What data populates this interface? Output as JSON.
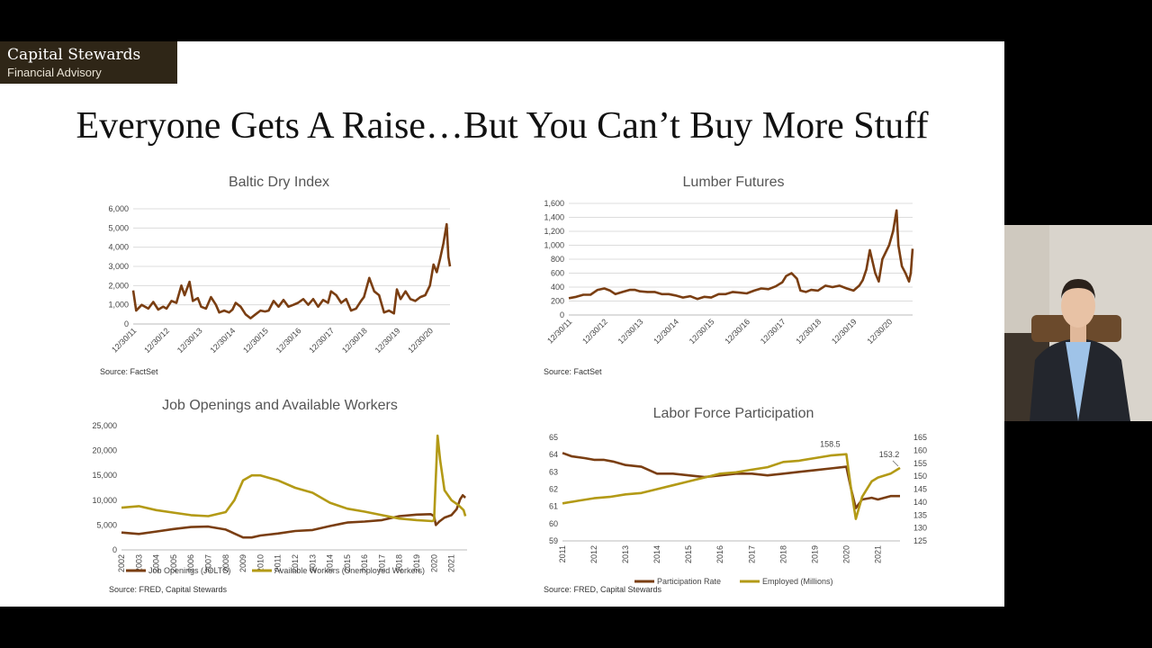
{
  "brand": {
    "name": "Capital Stewards",
    "subtitle": "Financial Advisory"
  },
  "slide_title": "Everyone Gets A Raise…But You Can’t Buy More Stuff",
  "colors": {
    "brown": "#7a3e12",
    "gold": "#b39a16",
    "brand_bg": "#2f2617"
  },
  "webcam": {
    "description_icon": "presenter-video-icon"
  },
  "chart_data": [
    {
      "id": "baltic",
      "type": "line",
      "title": "Baltic Dry Index",
      "source": "Source: FactSet",
      "ylim": [
        0,
        6000
      ],
      "yticks": [
        0,
        1000,
        2000,
        3000,
        4000,
        5000,
        6000
      ],
      "ytick_labels": [
        "0",
        "1,000",
        "2,000",
        "3,000",
        "4,000",
        "5,000",
        "6,000"
      ],
      "xlim": [
        2011.99,
        2021.6
      ],
      "xticks": [
        2011.99,
        2012.99,
        2013.99,
        2014.99,
        2015.99,
        2016.99,
        2017.99,
        2018.99,
        2019.99,
        2020.99
      ],
      "xtick_labels": [
        "12/30/11",
        "12/30/12",
        "12/30/13",
        "12/30/14",
        "12/30/15",
        "12/30/16",
        "12/30/17",
        "12/30/18",
        "12/30/19",
        "12/30/20"
      ],
      "grid": true,
      "series": [
        {
          "color": "#7a3e12",
          "x": [
            2011.99,
            2012.08,
            2012.25,
            2012.45,
            2012.6,
            2012.75,
            2012.9,
            2013.0,
            2013.15,
            2013.3,
            2013.45,
            2013.55,
            2013.7,
            2013.8,
            2013.95,
            2014.05,
            2014.2,
            2014.35,
            2014.5,
            2014.6,
            2014.75,
            2014.9,
            2015.0,
            2015.1,
            2015.25,
            2015.4,
            2015.55,
            2015.7,
            2015.85,
            2015.99,
            2016.1,
            2016.25,
            2016.4,
            2016.55,
            2016.7,
            2016.85,
            2016.99,
            2017.15,
            2017.3,
            2017.45,
            2017.6,
            2017.75,
            2017.9,
            2017.99,
            2018.15,
            2018.3,
            2018.45,
            2018.6,
            2018.75,
            2018.9,
            2018.99,
            2019.15,
            2019.3,
            2019.45,
            2019.6,
            2019.75,
            2019.9,
            2019.99,
            2020.1,
            2020.25,
            2020.4,
            2020.55,
            2020.7,
            2020.85,
            2020.99,
            2021.1,
            2021.2,
            2021.3,
            2021.4,
            2021.5,
            2021.55,
            2021.6
          ],
          "y": [
            1750,
            700,
            1000,
            800,
            1150,
            750,
            900,
            800,
            1200,
            1100,
            2000,
            1500,
            2200,
            1200,
            1350,
            900,
            800,
            1400,
            1000,
            600,
            700,
            600,
            750,
            1100,
            900,
            500,
            300,
            500,
            700,
            650,
            700,
            1200,
            900,
            1250,
            900,
            1000,
            1100,
            1300,
            1000,
            1300,
            900,
            1250,
            1100,
            1700,
            1500,
            1100,
            1300,
            700,
            800,
            1200,
            1400,
            2400,
            1700,
            1500,
            600,
            700,
            550,
            1800,
            1300,
            1700,
            1300,
            1200,
            1400,
            1500,
            2000,
            3100,
            2700,
            3400,
            4200,
            5200,
            3500,
            3000
          ]
        }
      ]
    },
    {
      "id": "lumber",
      "type": "line",
      "title": "Lumber Futures",
      "source": "Source: FactSet",
      "ylim": [
        0,
        1600
      ],
      "yticks": [
        0,
        200,
        400,
        600,
        800,
        1000,
        1200,
        1400,
        1600
      ],
      "ytick_labels": [
        "0",
        "200",
        "400",
        "600",
        "800",
        "1,000",
        "1,200",
        "1,400",
        "1,600"
      ],
      "xlim": [
        2011.99,
        2021.65
      ],
      "xticks": [
        2011.99,
        2012.99,
        2013.99,
        2014.99,
        2015.99,
        2016.99,
        2017.99,
        2018.99,
        2019.99,
        2020.99
      ],
      "xtick_labels": [
        "12/30/11",
        "12/30/12",
        "12/30/13",
        "12/30/14",
        "12/30/15",
        "12/30/16",
        "12/30/17",
        "12/30/18",
        "12/30/19",
        "12/30/20"
      ],
      "grid": true,
      "series": [
        {
          "color": "#7a3e12",
          "x": [
            2011.99,
            2012.2,
            2012.4,
            2012.6,
            2012.8,
            2012.99,
            2013.15,
            2013.3,
            2013.5,
            2013.7,
            2013.85,
            2013.99,
            2014.2,
            2014.4,
            2014.6,
            2014.8,
            2014.99,
            2015.2,
            2015.4,
            2015.6,
            2015.8,
            2015.99,
            2016.2,
            2016.4,
            2016.6,
            2016.8,
            2016.99,
            2017.2,
            2017.4,
            2017.6,
            2017.8,
            2017.99,
            2018.1,
            2018.25,
            2018.4,
            2018.5,
            2018.65,
            2018.8,
            2018.99,
            2019.2,
            2019.4,
            2019.6,
            2019.8,
            2019.99,
            2020.15,
            2020.25,
            2020.35,
            2020.45,
            2020.6,
            2020.7,
            2020.8,
            2020.99,
            2021.1,
            2021.2,
            2021.25,
            2021.35,
            2021.45,
            2021.55,
            2021.6,
            2021.65
          ],
          "y": [
            240,
            260,
            290,
            290,
            360,
            380,
            350,
            300,
            330,
            360,
            360,
            340,
            330,
            330,
            300,
            300,
            280,
            250,
            270,
            230,
            260,
            250,
            300,
            300,
            330,
            320,
            310,
            350,
            380,
            370,
            410,
            470,
            560,
            600,
            520,
            350,
            330,
            360,
            350,
            420,
            400,
            420,
            380,
            350,
            420,
            500,
            650,
            930,
            600,
            480,
            800,
            1000,
            1200,
            1500,
            1000,
            700,
            600,
            480,
            600,
            950
          ]
        }
      ]
    },
    {
      "id": "jobs",
      "type": "line",
      "title": "Job Openings and Available Workers",
      "source": "Source: FRED, Capital Stewards",
      "ylim": [
        0,
        25000
      ],
      "yticks": [
        0,
        5000,
        10000,
        15000,
        20000,
        25000
      ],
      "ytick_labels": [
        "0",
        "5,000",
        "10,000",
        "15,000",
        "20,000",
        "25,000"
      ],
      "xlim": [
        2002,
        2021.9
      ],
      "xticks": [
        2002,
        2003,
        2004,
        2005,
        2006,
        2007,
        2008,
        2009,
        2010,
        2011,
        2012,
        2013,
        2014,
        2015,
        2016,
        2017,
        2018,
        2019,
        2020,
        2021
      ],
      "xtick_labels": [
        "2002",
        "2003",
        "2004",
        "2005",
        "2006",
        "2007",
        "2008",
        "2009",
        "2010",
        "2011",
        "2012",
        "2013",
        "2014",
        "2015",
        "2016",
        "2017",
        "2018",
        "2019",
        "2020",
        "2021"
      ],
      "grid": false,
      "legend": "bottom",
      "series": [
        {
          "name": "Job Openings (JOLTS)",
          "color": "#7a3e12",
          "x": [
            2002,
            2003,
            2004,
            2005,
            2006,
            2007,
            2008,
            2008.5,
            2009,
            2009.5,
            2010,
            2011,
            2012,
            2013,
            2014,
            2015,
            2016,
            2017,
            2018,
            2019,
            2019.8,
            2020.0,
            2020.1,
            2020.3,
            2020.6,
            2021,
            2021.3,
            2021.5,
            2021.65,
            2021.8
          ],
          "y": [
            3500,
            3200,
            3700,
            4200,
            4600,
            4700,
            4100,
            3300,
            2500,
            2500,
            2900,
            3300,
            3800,
            4000,
            4800,
            5500,
            5700,
            6000,
            6800,
            7100,
            7200,
            6800,
            5000,
            5700,
            6500,
            7000,
            8200,
            10200,
            11000,
            10500
          ]
        },
        {
          "name": "Available Workers (Unemployed Workers)",
          "color": "#b39a16",
          "x": [
            2002,
            2003,
            2004,
            2005,
            2006,
            2007,
            2008,
            2008.5,
            2009,
            2009.5,
            2010,
            2010.5,
            2011,
            2012,
            2013,
            2014,
            2015,
            2016,
            2017,
            2018,
            2019,
            2019.9,
            2020.0,
            2020.2,
            2020.35,
            2020.6,
            2021,
            2021.4,
            2021.7,
            2021.8
          ],
          "y": [
            8500,
            8800,
            8000,
            7500,
            7000,
            6800,
            7600,
            10000,
            14000,
            15000,
            15000,
            14500,
            14000,
            12500,
            11500,
            9500,
            8300,
            7700,
            7000,
            6300,
            6000,
            5800,
            6000,
            23000,
            18000,
            12000,
            10000,
            9000,
            8000,
            6800
          ]
        }
      ]
    },
    {
      "id": "labor",
      "type": "line",
      "title": "Labor Force Participation",
      "source": "Source: FRED, Capital Stewards",
      "ylim": [
        59,
        65
      ],
      "yticks": [
        59,
        60,
        61,
        62,
        63,
        64,
        65
      ],
      "ytick_labels": [
        "59",
        "60",
        "61",
        "62",
        "63",
        "64",
        "65"
      ],
      "y2lim": [
        125,
        165
      ],
      "y2ticks": [
        125,
        130,
        135,
        140,
        145,
        150,
        155,
        160,
        165
      ],
      "y2tick_labels": [
        "125",
        "130",
        "135",
        "140",
        "145",
        "150",
        "155",
        "160",
        "165"
      ],
      "xlim": [
        2011,
        2021.7
      ],
      "xticks": [
        2011,
        2012,
        2013,
        2014,
        2015,
        2016,
        2017,
        2018,
        2019,
        2020,
        2021
      ],
      "xtick_labels": [
        "2011",
        "2012",
        "2013",
        "2014",
        "2015",
        "2016",
        "2017",
        "2018",
        "2019",
        "2020",
        "2021"
      ],
      "grid": false,
      "legend": "bottom",
      "annotations": [
        {
          "text": "158.5",
          "x": 2019.6,
          "axis": "y2",
          "y": 158.5
        },
        {
          "text": "153.2",
          "x": 2021.7,
          "axis": "y2",
          "y": 153.2
        }
      ],
      "series": [
        {
          "name": "Participation Rate",
          "color": "#7a3e12",
          "axis": "y",
          "x": [
            2011,
            2011.3,
            2011.7,
            2012,
            2012.3,
            2012.6,
            2013,
            2013.5,
            2014,
            2014.5,
            2015,
            2015.5,
            2016,
            2016.5,
            2017,
            2017.5,
            2018,
            2018.5,
            2019,
            2019.5,
            2020.0,
            2020.15,
            2020.3,
            2020.5,
            2020.8,
            2021,
            2021.4,
            2021.7
          ],
          "y": [
            64.1,
            63.9,
            63.8,
            63.7,
            63.7,
            63.6,
            63.4,
            63.3,
            62.9,
            62.9,
            62.8,
            62.7,
            62.8,
            62.9,
            62.9,
            62.8,
            62.9,
            63.0,
            63.1,
            63.2,
            63.3,
            62.0,
            60.9,
            61.4,
            61.5,
            61.4,
            61.6,
            61.6
          ]
        },
        {
          "name": "Employed (Millions)",
          "color": "#b39a16",
          "axis": "y2",
          "x": [
            2011,
            2011.5,
            2012,
            2012.5,
            2013,
            2013.5,
            2014,
            2014.5,
            2015,
            2015.5,
            2016,
            2016.5,
            2017,
            2017.5,
            2018,
            2018.5,
            2019,
            2019.5,
            2020.0,
            2020.15,
            2020.3,
            2020.5,
            2020.8,
            2021,
            2021.4,
            2021.7
          ],
          "y": [
            139.5,
            140.5,
            141.5,
            142.0,
            143.0,
            143.5,
            145.0,
            146.5,
            148.0,
            149.5,
            151.0,
            151.5,
            152.5,
            153.5,
            155.5,
            156.0,
            157.0,
            158.0,
            158.5,
            145.0,
            133.5,
            142.0,
            148.0,
            149.5,
            151.0,
            153.2
          ]
        }
      ]
    }
  ]
}
